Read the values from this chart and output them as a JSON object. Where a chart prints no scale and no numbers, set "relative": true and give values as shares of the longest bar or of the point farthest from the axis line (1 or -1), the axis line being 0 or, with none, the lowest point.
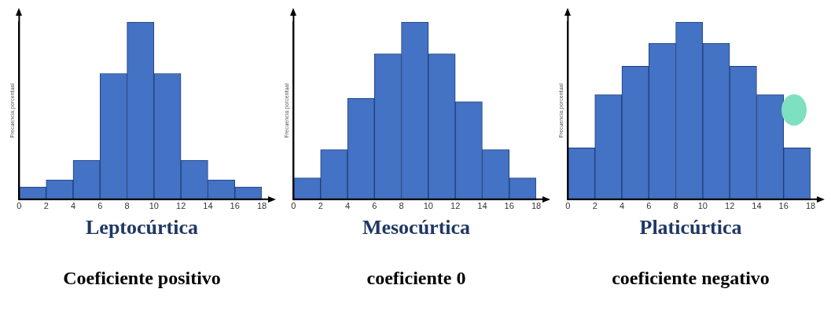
{
  "chart_data": [
    {
      "type": "bar",
      "title": "Leptocúrtica",
      "subtitle": "Coeficiente positivo",
      "ylabel": "Frecuencia porcentual",
      "relative": true,
      "x": [
        1,
        3,
        5,
        7,
        9,
        11,
        13,
        15,
        17
      ],
      "values": [
        0.07,
        0.11,
        0.22,
        0.71,
        1,
        0.71,
        0.22,
        0.11,
        0.07
      ],
      "color": "#4472c4",
      "xlim": [
        0,
        18
      ],
      "xticks": [
        0,
        2,
        4,
        6,
        8,
        10,
        12,
        14,
        16,
        18
      ],
      "grid": false
    },
    {
      "type": "bar",
      "title": "Mesocúrtica",
      "subtitle": "coeficiente 0",
      "ylabel": "Frecuencia porcentual",
      "relative": true,
      "x": [
        1,
        3,
        5,
        7,
        9,
        11,
        13,
        15,
        17
      ],
      "values": [
        0.12,
        0.28,
        0.57,
        0.82,
        1,
        0.82,
        0.55,
        0.28,
        0.12
      ],
      "color": "#4472c4",
      "xlim": [
        0,
        18
      ],
      "xticks": [
        0,
        2,
        4,
        6,
        8,
        10,
        12,
        14,
        16,
        18
      ],
      "grid": false
    },
    {
      "type": "bar",
      "title": "Platicúrtica",
      "subtitle": "coeficiente negativo",
      "ylabel": "Frecuencia porcentual",
      "relative": true,
      "x": [
        1,
        3,
        5,
        7,
        9,
        11,
        13,
        15,
        17
      ],
      "values": [
        0.29,
        0.59,
        0.75,
        0.88,
        1,
        0.88,
        0.75,
        0.59,
        0.29
      ],
      "color": "#4472c4",
      "xlim": [
        0,
        18
      ],
      "xticks": [
        0,
        2,
        4,
        6,
        8,
        10,
        12,
        14,
        16,
        18
      ],
      "grid": false
    }
  ]
}
